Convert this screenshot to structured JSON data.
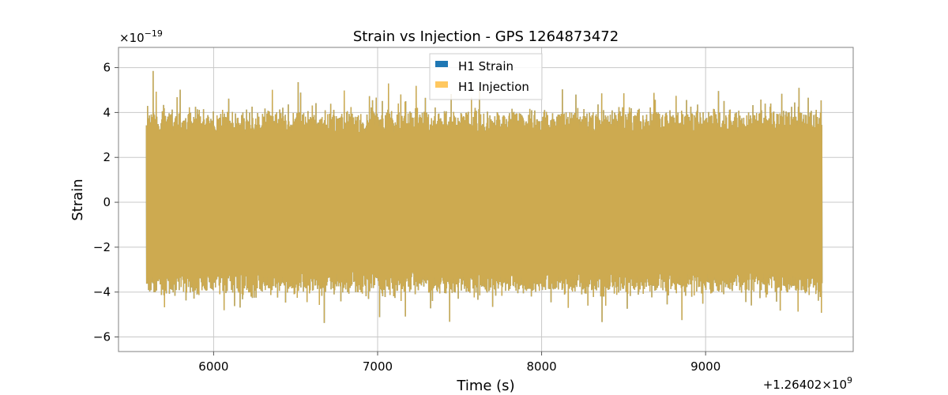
{
  "chart_data": {
    "type": "line",
    "title": "Strain vs Injection - GPS 1264873472",
    "xlabel": "Time (s)",
    "ylabel": "Strain",
    "x_offset_label": "+1.26402×10",
    "x_offset_exp": "9",
    "y_scale_label": "×10",
    "y_scale_exp": "−19",
    "xlim": [
      5420,
      9900
    ],
    "ylim": [
      -6.65,
      6.9
    ],
    "x_ticks": [
      6000,
      7000,
      8000,
      9000
    ],
    "x_tick_labels": [
      "6000",
      "7000",
      "8000",
      "9000"
    ],
    "y_ticks": [
      -6,
      -4,
      -2,
      0,
      2,
      4,
      6
    ],
    "y_tick_labels": [
      "−6",
      "−4",
      "−2",
      "0",
      "2",
      "4",
      "6"
    ],
    "grid": true,
    "legend_position": "upper center",
    "series": [
      {
        "name": "H1 Strain",
        "color": "#1f77b4",
        "x_range": [
          5590,
          9710
        ],
        "typical_amplitude": 3.9,
        "peak_max": 6.3,
        "peak_min": -6.0
      },
      {
        "name": "H1 Injection",
        "color": "#ffb933",
        "opacity": 0.78,
        "x_range": [
          5590,
          9710
        ],
        "typical_amplitude": 3.9,
        "peak_max": 6.3,
        "peak_min": -6.0
      }
    ]
  }
}
